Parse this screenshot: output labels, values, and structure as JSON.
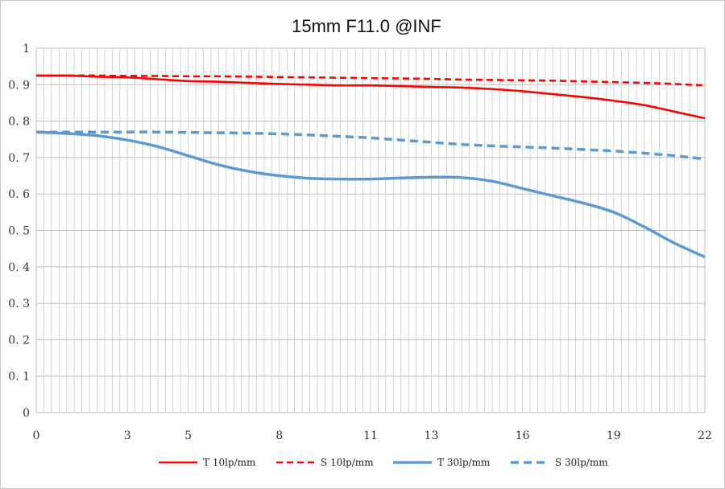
{
  "chart_data": {
    "type": "line",
    "title": "15mm F11.0 @INF",
    "xlabel": "",
    "ylabel": "",
    "xlim": [
      0,
      22
    ],
    "ylim": [
      0,
      1
    ],
    "x_ticks": [
      0,
      3,
      5,
      8,
      11,
      13,
      16,
      19,
      22
    ],
    "x_tick_labels": [
      "0",
      "3",
      "5",
      "8",
      "11",
      "13",
      "16",
      "19",
      "22"
    ],
    "y_ticks": [
      0,
      0.1,
      0.2,
      0.3,
      0.4,
      0.5,
      0.6,
      0.7,
      0.8,
      0.9,
      1
    ],
    "y_tick_labels": [
      "0",
      "0. 1",
      "0. 2",
      "0. 3",
      "0. 4",
      "0. 5",
      "0. 6",
      "0. 7",
      "0. 8",
      "0. 9",
      "1"
    ],
    "grid": "vertical and horizontal",
    "legend_position": "bottom",
    "x": [
      0,
      1,
      2,
      3,
      4,
      5,
      6,
      7,
      8,
      9,
      10,
      11,
      12,
      13,
      14,
      15,
      16,
      17,
      18,
      19,
      20,
      21,
      22
    ],
    "series": [
      {
        "name": "T 10lp/mm",
        "color": "#ff0000",
        "dash": "solid",
        "values": [
          0.925,
          0.925,
          0.922,
          0.92,
          0.915,
          0.91,
          0.908,
          0.905,
          0.902,
          0.9,
          0.898,
          0.898,
          0.896,
          0.894,
          0.892,
          0.888,
          0.882,
          0.874,
          0.866,
          0.856,
          0.844,
          0.826,
          0.808
        ]
      },
      {
        "name": "S 10lp/mm",
        "color": "#ff0000",
        "dash": "dashed",
        "values": [
          0.925,
          0.925,
          0.925,
          0.924,
          0.924,
          0.923,
          0.923,
          0.922,
          0.921,
          0.92,
          0.919,
          0.918,
          0.917,
          0.916,
          0.914,
          0.913,
          0.912,
          0.911,
          0.909,
          0.907,
          0.905,
          0.902,
          0.898
        ]
      },
      {
        "name": "T 30lp/mm",
        "color": "#5b9bd5",
        "dash": "solid",
        "values": [
          0.77,
          0.766,
          0.76,
          0.748,
          0.73,
          0.705,
          0.68,
          0.662,
          0.65,
          0.643,
          0.641,
          0.641,
          0.644,
          0.646,
          0.645,
          0.635,
          0.615,
          0.595,
          0.575,
          0.55,
          0.51,
          0.465,
          0.427
        ]
      },
      {
        "name": "S 30lp/mm",
        "color": "#5b9bd5",
        "dash": "dashed",
        "values": [
          0.77,
          0.77,
          0.77,
          0.77,
          0.77,
          0.769,
          0.768,
          0.767,
          0.765,
          0.762,
          0.758,
          0.754,
          0.748,
          0.742,
          0.736,
          0.732,
          0.729,
          0.726,
          0.722,
          0.718,
          0.712,
          0.705,
          0.696
        ]
      }
    ]
  }
}
